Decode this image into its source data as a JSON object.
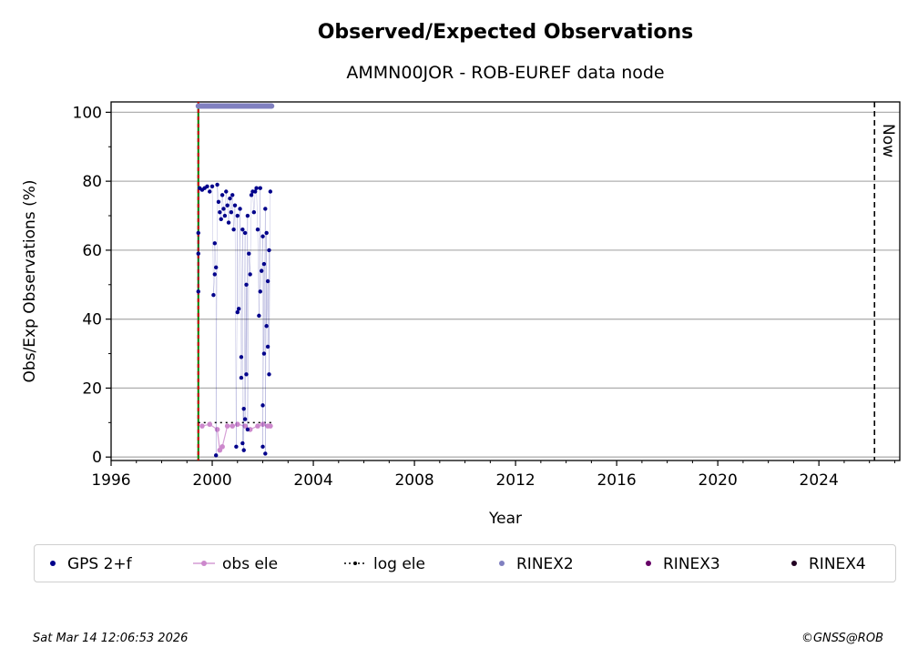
{
  "chart_data": {
    "type": "scatter",
    "title": "Observed/Expected Observations",
    "subtitle": "AMMN00JOR - ROB-EUREF data node",
    "xlabel": "Year",
    "ylabel": "Obs/Exp Observations (%)",
    "xlim": [
      1996.0,
      2027.2
    ],
    "ylim": [
      -1,
      103
    ],
    "x_ticks": [
      1996,
      2000,
      2004,
      2008,
      2012,
      2016,
      2020,
      2024
    ],
    "y_ticks": [
      0,
      20,
      40,
      60,
      80,
      100
    ],
    "grid": "horizontal",
    "now_label": "Now",
    "now_x": 2026.2,
    "vlines": [
      {
        "x": 1999.45,
        "colors": [
          "#008000",
          "#cc0000"
        ],
        "style": "dashed"
      }
    ],
    "legend": {
      "placement": "bottom",
      "entries": [
        "GPS 2+f",
        "obs ele",
        "log ele",
        "RINEX2",
        "RINEX3",
        "RINEX4"
      ]
    },
    "series": [
      {
        "name": "GPS 2+f",
        "color": "#00008b",
        "points": [
          [
            1999.45,
            65
          ],
          [
            1999.45,
            59
          ],
          [
            1999.45,
            48
          ],
          [
            1999.5,
            78
          ],
          [
            1999.6,
            77.5
          ],
          [
            1999.7,
            78
          ],
          [
            1999.8,
            78.5
          ],
          [
            1999.9,
            77
          ],
          [
            2000.0,
            78.5
          ],
          [
            2000.05,
            47
          ],
          [
            2000.1,
            53
          ],
          [
            2000.1,
            62
          ],
          [
            2000.15,
            55
          ],
          [
            2000.15,
            0.5
          ],
          [
            2000.2,
            79
          ],
          [
            2000.25,
            74
          ],
          [
            2000.3,
            71
          ],
          [
            2000.35,
            69
          ],
          [
            2000.4,
            76
          ],
          [
            2000.45,
            72
          ],
          [
            2000.5,
            70
          ],
          [
            2000.55,
            77
          ],
          [
            2000.6,
            73
          ],
          [
            2000.65,
            68
          ],
          [
            2000.7,
            75
          ],
          [
            2000.75,
            71
          ],
          [
            2000.8,
            76
          ],
          [
            2000.85,
            66
          ],
          [
            2000.9,
            73
          ],
          [
            2000.95,
            3
          ],
          [
            2001.0,
            70
          ],
          [
            2001.0,
            42
          ],
          [
            2001.05,
            43
          ],
          [
            2001.1,
            72
          ],
          [
            2001.15,
            29
          ],
          [
            2001.15,
            23
          ],
          [
            2001.2,
            66
          ],
          [
            2001.2,
            4
          ],
          [
            2001.25,
            14
          ],
          [
            2001.25,
            2
          ],
          [
            2001.3,
            65
          ],
          [
            2001.3,
            11
          ],
          [
            2001.35,
            50
          ],
          [
            2001.35,
            24
          ],
          [
            2001.4,
            70
          ],
          [
            2001.4,
            8
          ],
          [
            2001.45,
            59
          ],
          [
            2001.5,
            53
          ],
          [
            2001.55,
            76
          ],
          [
            2001.6,
            77
          ],
          [
            2001.65,
            71
          ],
          [
            2001.7,
            77
          ],
          [
            2001.75,
            78
          ],
          [
            2001.8,
            66
          ],
          [
            2001.85,
            41
          ],
          [
            2001.9,
            78
          ],
          [
            2001.9,
            48
          ],
          [
            2001.95,
            54
          ],
          [
            2002.0,
            64
          ],
          [
            2002.0,
            15
          ],
          [
            2002.0,
            3
          ],
          [
            2002.05,
            56
          ],
          [
            2002.05,
            30
          ],
          [
            2002.1,
            72
          ],
          [
            2002.1,
            1
          ],
          [
            2002.15,
            65
          ],
          [
            2002.15,
            38
          ],
          [
            2002.2,
            51
          ],
          [
            2002.2,
            32
          ],
          [
            2002.25,
            60
          ],
          [
            2002.25,
            24
          ],
          [
            2002.3,
            77
          ]
        ]
      },
      {
        "name": "obs ele",
        "color": "#cc88cc",
        "points": [
          [
            1999.6,
            9
          ],
          [
            1999.9,
            9.5
          ],
          [
            2000.2,
            8
          ],
          [
            2000.3,
            2
          ],
          [
            2000.4,
            3
          ],
          [
            2000.6,
            9
          ],
          [
            2000.8,
            9
          ],
          [
            2001.0,
            9.5
          ],
          [
            2001.3,
            9
          ],
          [
            2001.5,
            8
          ],
          [
            2001.8,
            9
          ],
          [
            2002.0,
            9.5
          ],
          [
            2002.2,
            9
          ],
          [
            2002.3,
            9
          ]
        ]
      },
      {
        "name": "log ele",
        "color": "#000000",
        "x_range": [
          1999.45,
          2002.35
        ],
        "value": 10
      },
      {
        "name": "RINEX2",
        "color": "#8080c0",
        "x_range": [
          1999.45,
          2002.35
        ],
        "value": 101.8
      },
      {
        "name": "RINEX3",
        "color": "#660066",
        "points": []
      },
      {
        "name": "RINEX4",
        "color": "#220022",
        "points": []
      }
    ]
  },
  "footer": {
    "timestamp": "Sat Mar 14 12:06:53 2026",
    "credit": "©GNSS@ROB"
  }
}
